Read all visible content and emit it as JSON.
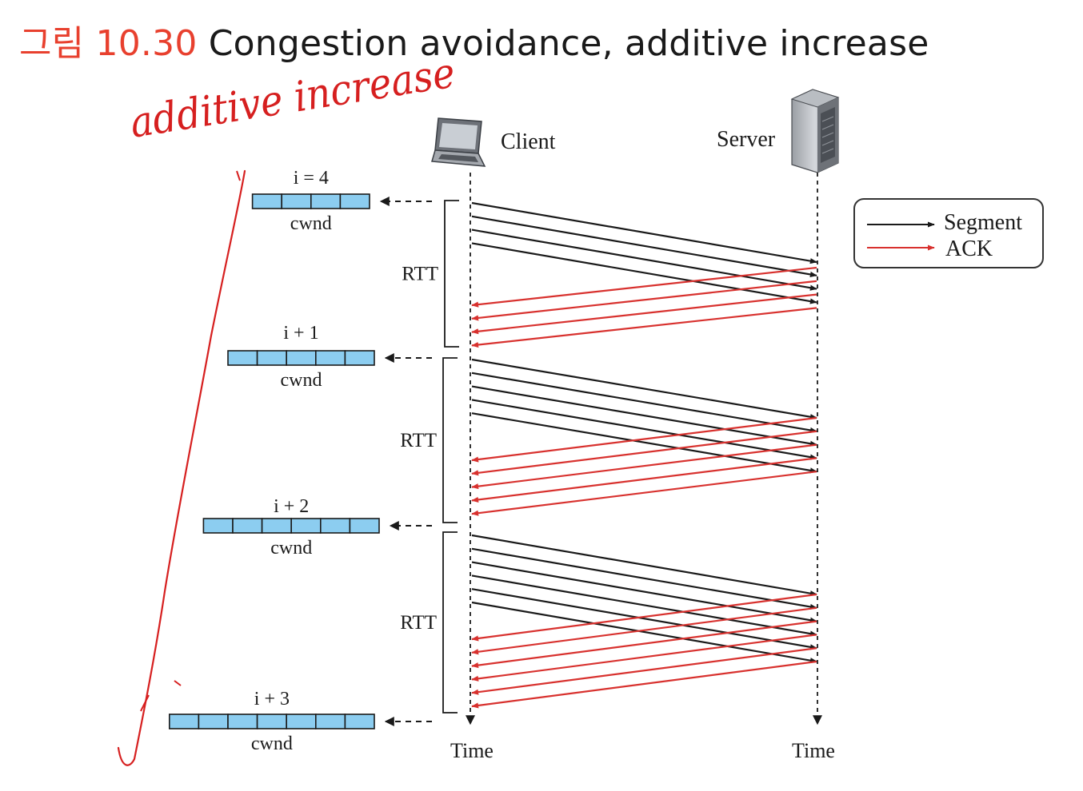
{
  "title": {
    "label": "그림 10.30",
    "text": "Congestion avoidance, additive increase"
  },
  "handwritten_note": "additive increase",
  "endpoints": {
    "client": "Client",
    "server": "Server",
    "time_label": "Time"
  },
  "legend": {
    "segment": "Segment",
    "ack": "ACK"
  },
  "rtt_label": "RTT",
  "cwnd_label": "cwnd",
  "windows": [
    {
      "label": "i = 4",
      "size": 4
    },
    {
      "label": "i + 1",
      "size": 5
    },
    {
      "label": "i + 2",
      "size": 6
    },
    {
      "label": "i + 3",
      "size": 7
    }
  ],
  "rounds": [
    {
      "segments": 4,
      "acks": 4
    },
    {
      "segments": 5,
      "acks": 5
    },
    {
      "segments": 6,
      "acks": 6
    }
  ],
  "colors": {
    "title_red": "#e8402e",
    "segment": "#1a1a1a",
    "ack": "#d8312e",
    "cwnd_fill": "#8ccdf0",
    "handwriting": "#d61f1f",
    "timeline": "#333333"
  },
  "icons": {
    "client": "laptop-icon",
    "server": "server-tower-icon"
  }
}
